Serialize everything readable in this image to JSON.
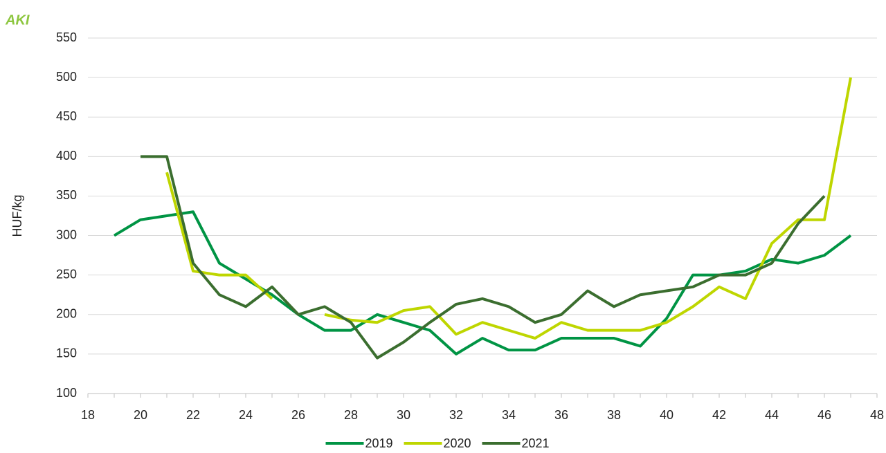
{
  "chart_data": {
    "type": "line",
    "logo": "AKI",
    "ylabel": "HUF/kg",
    "x": [
      19,
      20,
      21,
      22,
      23,
      24,
      25,
      26,
      27,
      28,
      29,
      30,
      31,
      32,
      33,
      34,
      35,
      36,
      37,
      38,
      39,
      40,
      41,
      42,
      43,
      44,
      45,
      46,
      47
    ],
    "series": [
      {
        "name": "2019",
        "color": "#009444",
        "values": [
          300,
          320,
          325,
          330,
          265,
          245,
          225,
          200,
          180,
          180,
          200,
          190,
          180,
          150,
          170,
          155,
          155,
          170,
          170,
          170,
          160,
          195,
          250,
          250,
          255,
          270,
          265,
          275,
          300
        ]
      },
      {
        "name": "2020",
        "color": "#bed600",
        "values": [
          null,
          null,
          380,
          255,
          250,
          250,
          220,
          null,
          200,
          193,
          190,
          205,
          210,
          175,
          190,
          180,
          170,
          190,
          180,
          180,
          180,
          190,
          210,
          235,
          220,
          290,
          320,
          320,
          500
        ]
      },
      {
        "name": "2021",
        "color": "#3b6e2f",
        "values": [
          null,
          400,
          400,
          265,
          225,
          210,
          235,
          200,
          210,
          190,
          145,
          165,
          190,
          213,
          220,
          210,
          190,
          200,
          230,
          210,
          225,
          230,
          235,
          250,
          250,
          265,
          315,
          350,
          null
        ]
      }
    ],
    "xlim": [
      18,
      48
    ],
    "xticks": [
      18,
      20,
      22,
      24,
      26,
      28,
      30,
      32,
      34,
      36,
      38,
      40,
      42,
      44,
      46,
      48
    ],
    "ylim": [
      100,
      550
    ],
    "yticks": [
      100,
      150,
      200,
      250,
      300,
      350,
      400,
      450,
      500,
      550
    ],
    "grid": true,
    "legend": "bottom"
  }
}
